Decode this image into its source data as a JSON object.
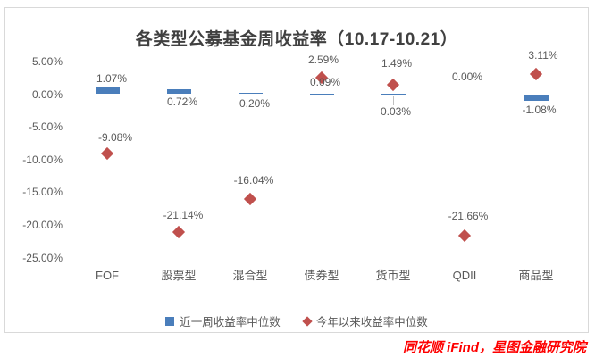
{
  "title": "各类型公募基金周收益率（10.17-10.21）",
  "source": "同花顺 iFind，星图金融研究院",
  "legend": [
    {
      "label": "近一周收益率中位数",
      "marker": "square",
      "color": "#4A7EBB"
    },
    {
      "label": "今年以来收益率中位数",
      "marker": "diamond",
      "color": "#C0504D"
    }
  ],
  "chart_data": {
    "type": "bar",
    "title": "各类型公募基金周收益率（10.17-10.21）",
    "categories": [
      "FOF",
      "股票型",
      "混合型",
      "债券型",
      "货币型",
      "QDII",
      "商品型"
    ],
    "series": [
      {
        "name": "近一周收益率中位数",
        "render": "bar",
        "color": "#4A7EBB",
        "values": [
          1.07,
          0.72,
          0.2,
          0.09,
          0.03,
          0.0,
          -1.08
        ],
        "labels": [
          "1.07%",
          "0.72%",
          "0.20%",
          "0.09%",
          "0.03%",
          "0.00%",
          "-1.08%"
        ]
      },
      {
        "name": "今年以来收益率中位数",
        "render": "scatter",
        "marker": "diamond",
        "color": "#C0504D",
        "values": [
          -9.08,
          -21.14,
          -16.04,
          2.59,
          1.49,
          -21.66,
          3.11
        ],
        "labels": [
          "-9.08%",
          "-21.14%",
          "-16.04%",
          "2.59%",
          "1.49%",
          "-21.66%",
          "3.11%"
        ]
      }
    ],
    "xlabel": "",
    "ylabel": "",
    "ylim": [
      -25,
      5
    ],
    "yticks": [
      5,
      0,
      -5,
      -10,
      -15,
      -20,
      -25
    ],
    "ytick_labels": [
      "5.00%",
      "0.00%",
      "-5.00%",
      "-10.00%",
      "-15.00%",
      "-20.00%",
      "-25.00%"
    ],
    "grid": false,
    "legend_position": "bottom"
  }
}
